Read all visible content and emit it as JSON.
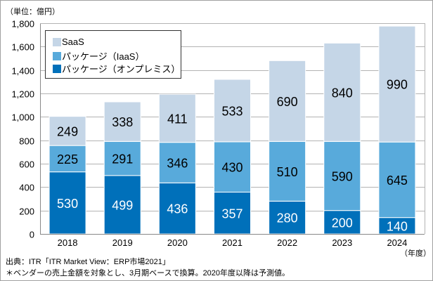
{
  "chart_data": {
    "type": "bar",
    "stacked": true,
    "unit_label": "（単位：億円）",
    "xlabel": "（年度）",
    "categories": [
      "2018",
      "2019",
      "2020",
      "2021",
      "2022",
      "2023",
      "2024"
    ],
    "series": [
      {
        "name": "パッケージ（オンプレミス）",
        "color": "#0070ba",
        "label_color": "#ffffff",
        "values": [
          530,
          499,
          436,
          357,
          280,
          200,
          140
        ]
      },
      {
        "name": "パッケージ（IaaS）",
        "color": "#58aadb",
        "label_color": "#000000",
        "values": [
          225,
          291,
          346,
          430,
          510,
          590,
          645
        ]
      },
      {
        "name": "SaaS",
        "color": "#c5d6e7",
        "label_color": "#000000",
        "values": [
          249,
          338,
          411,
          533,
          690,
          840,
          990
        ]
      }
    ],
    "legend_order": [
      "SaaS",
      "パッケージ（IaaS）",
      "パッケージ（オンプレミス）"
    ],
    "ylim": [
      0,
      1800
    ],
    "yticks": [
      0,
      200,
      400,
      600,
      800,
      1000,
      1200,
      1400,
      1600,
      1800
    ],
    "ytick_labels": [
      "0",
      "200",
      "400",
      "600",
      "800",
      "1,000",
      "1,200",
      "1,400",
      "1,600",
      "1,800"
    ],
    "grid": true,
    "legend_position": "top-left"
  },
  "notes": {
    "source": "出典：ITR「ITR Market View：ERP市場2021」",
    "footnote": "＊ベンダーの売上金額を対象とし、3月期ベースで換算。2020年度以降は予測値。"
  }
}
